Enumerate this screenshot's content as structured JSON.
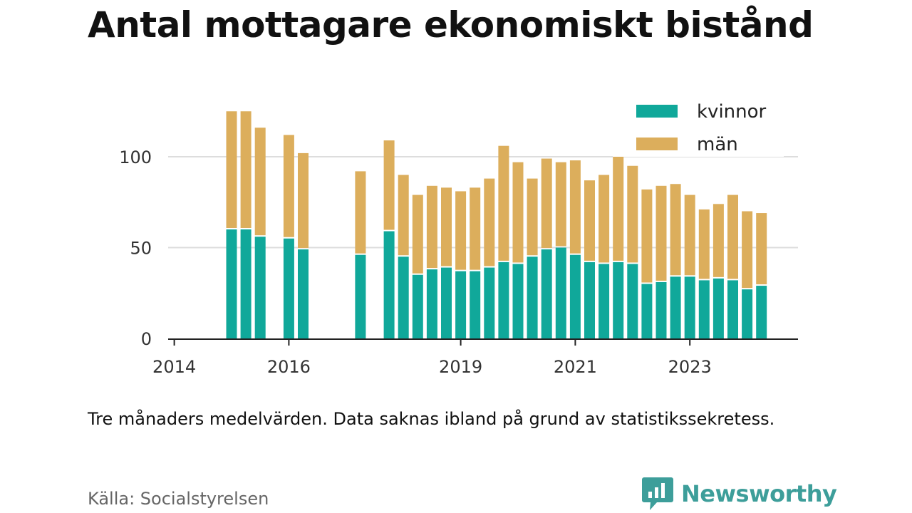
{
  "title": "Antal mottagare ekonomiskt bistånd",
  "note": "Tre månaders medelvärden. Data saknas ibland på grund av statistikssekretess.",
  "source": "Källa: Socialstyrelsen",
  "brand": "Newsworthy",
  "colors": {
    "kvinnor": "#10a89a",
    "man": "#dcae5c",
    "brand": "#3d9e9a"
  },
  "chart_data": {
    "type": "bar",
    "stacked": true,
    "x_unit": "quarter",
    "categories": [
      "2014-Q1",
      "2014-Q2",
      "2014-Q3",
      "2014-Q4",
      "2015-Q1",
      "2015-Q2",
      "2015-Q3",
      "2015-Q4",
      "2016-Q1",
      "2016-Q2",
      "2016-Q3",
      "2016-Q4",
      "2017-Q1",
      "2017-Q2",
      "2017-Q3",
      "2017-Q4",
      "2018-Q1",
      "2018-Q2",
      "2018-Q3",
      "2018-Q4",
      "2019-Q1",
      "2019-Q2",
      "2019-Q3",
      "2019-Q4",
      "2020-Q1",
      "2020-Q2",
      "2020-Q3",
      "2020-Q4",
      "2021-Q1",
      "2021-Q2",
      "2021-Q3",
      "2021-Q4",
      "2022-Q1",
      "2022-Q2",
      "2022-Q3",
      "2022-Q4",
      "2023-Q1",
      "2023-Q2",
      "2023-Q3",
      "2023-Q4",
      "2024-Q1",
      "2024-Q2"
    ],
    "series": [
      {
        "name": "kvinnor",
        "values": [
          null,
          null,
          null,
          null,
          60,
          60,
          56,
          null,
          55,
          49,
          null,
          null,
          null,
          46,
          null,
          59,
          45,
          35,
          38,
          39,
          37,
          37,
          39,
          42,
          41,
          45,
          49,
          50,
          46,
          42,
          41,
          42,
          41,
          30,
          31,
          34,
          34,
          32,
          33,
          32,
          27,
          29
        ]
      },
      {
        "name": "män",
        "values": [
          null,
          null,
          null,
          null,
          65,
          65,
          60,
          null,
          57,
          53,
          null,
          null,
          null,
          46,
          null,
          50,
          45,
          44,
          46,
          44,
          44,
          46,
          49,
          64,
          56,
          43,
          50,
          47,
          52,
          45,
          49,
          58,
          54,
          52,
          53,
          51,
          45,
          39,
          41,
          47,
          43,
          40
        ]
      }
    ],
    "xticks": [
      {
        "label": "2014",
        "at": "2014-Q1"
      },
      {
        "label": "2016",
        "at": "2016-Q1"
      },
      {
        "label": "2019",
        "at": "2019-Q1"
      },
      {
        "label": "2021",
        "at": "2021-Q1"
      },
      {
        "label": "2023",
        "at": "2023-Q1"
      }
    ],
    "yticks": [
      0,
      50,
      100
    ],
    "ylim": [
      0,
      130
    ],
    "grid": true,
    "legend": "top-right"
  }
}
